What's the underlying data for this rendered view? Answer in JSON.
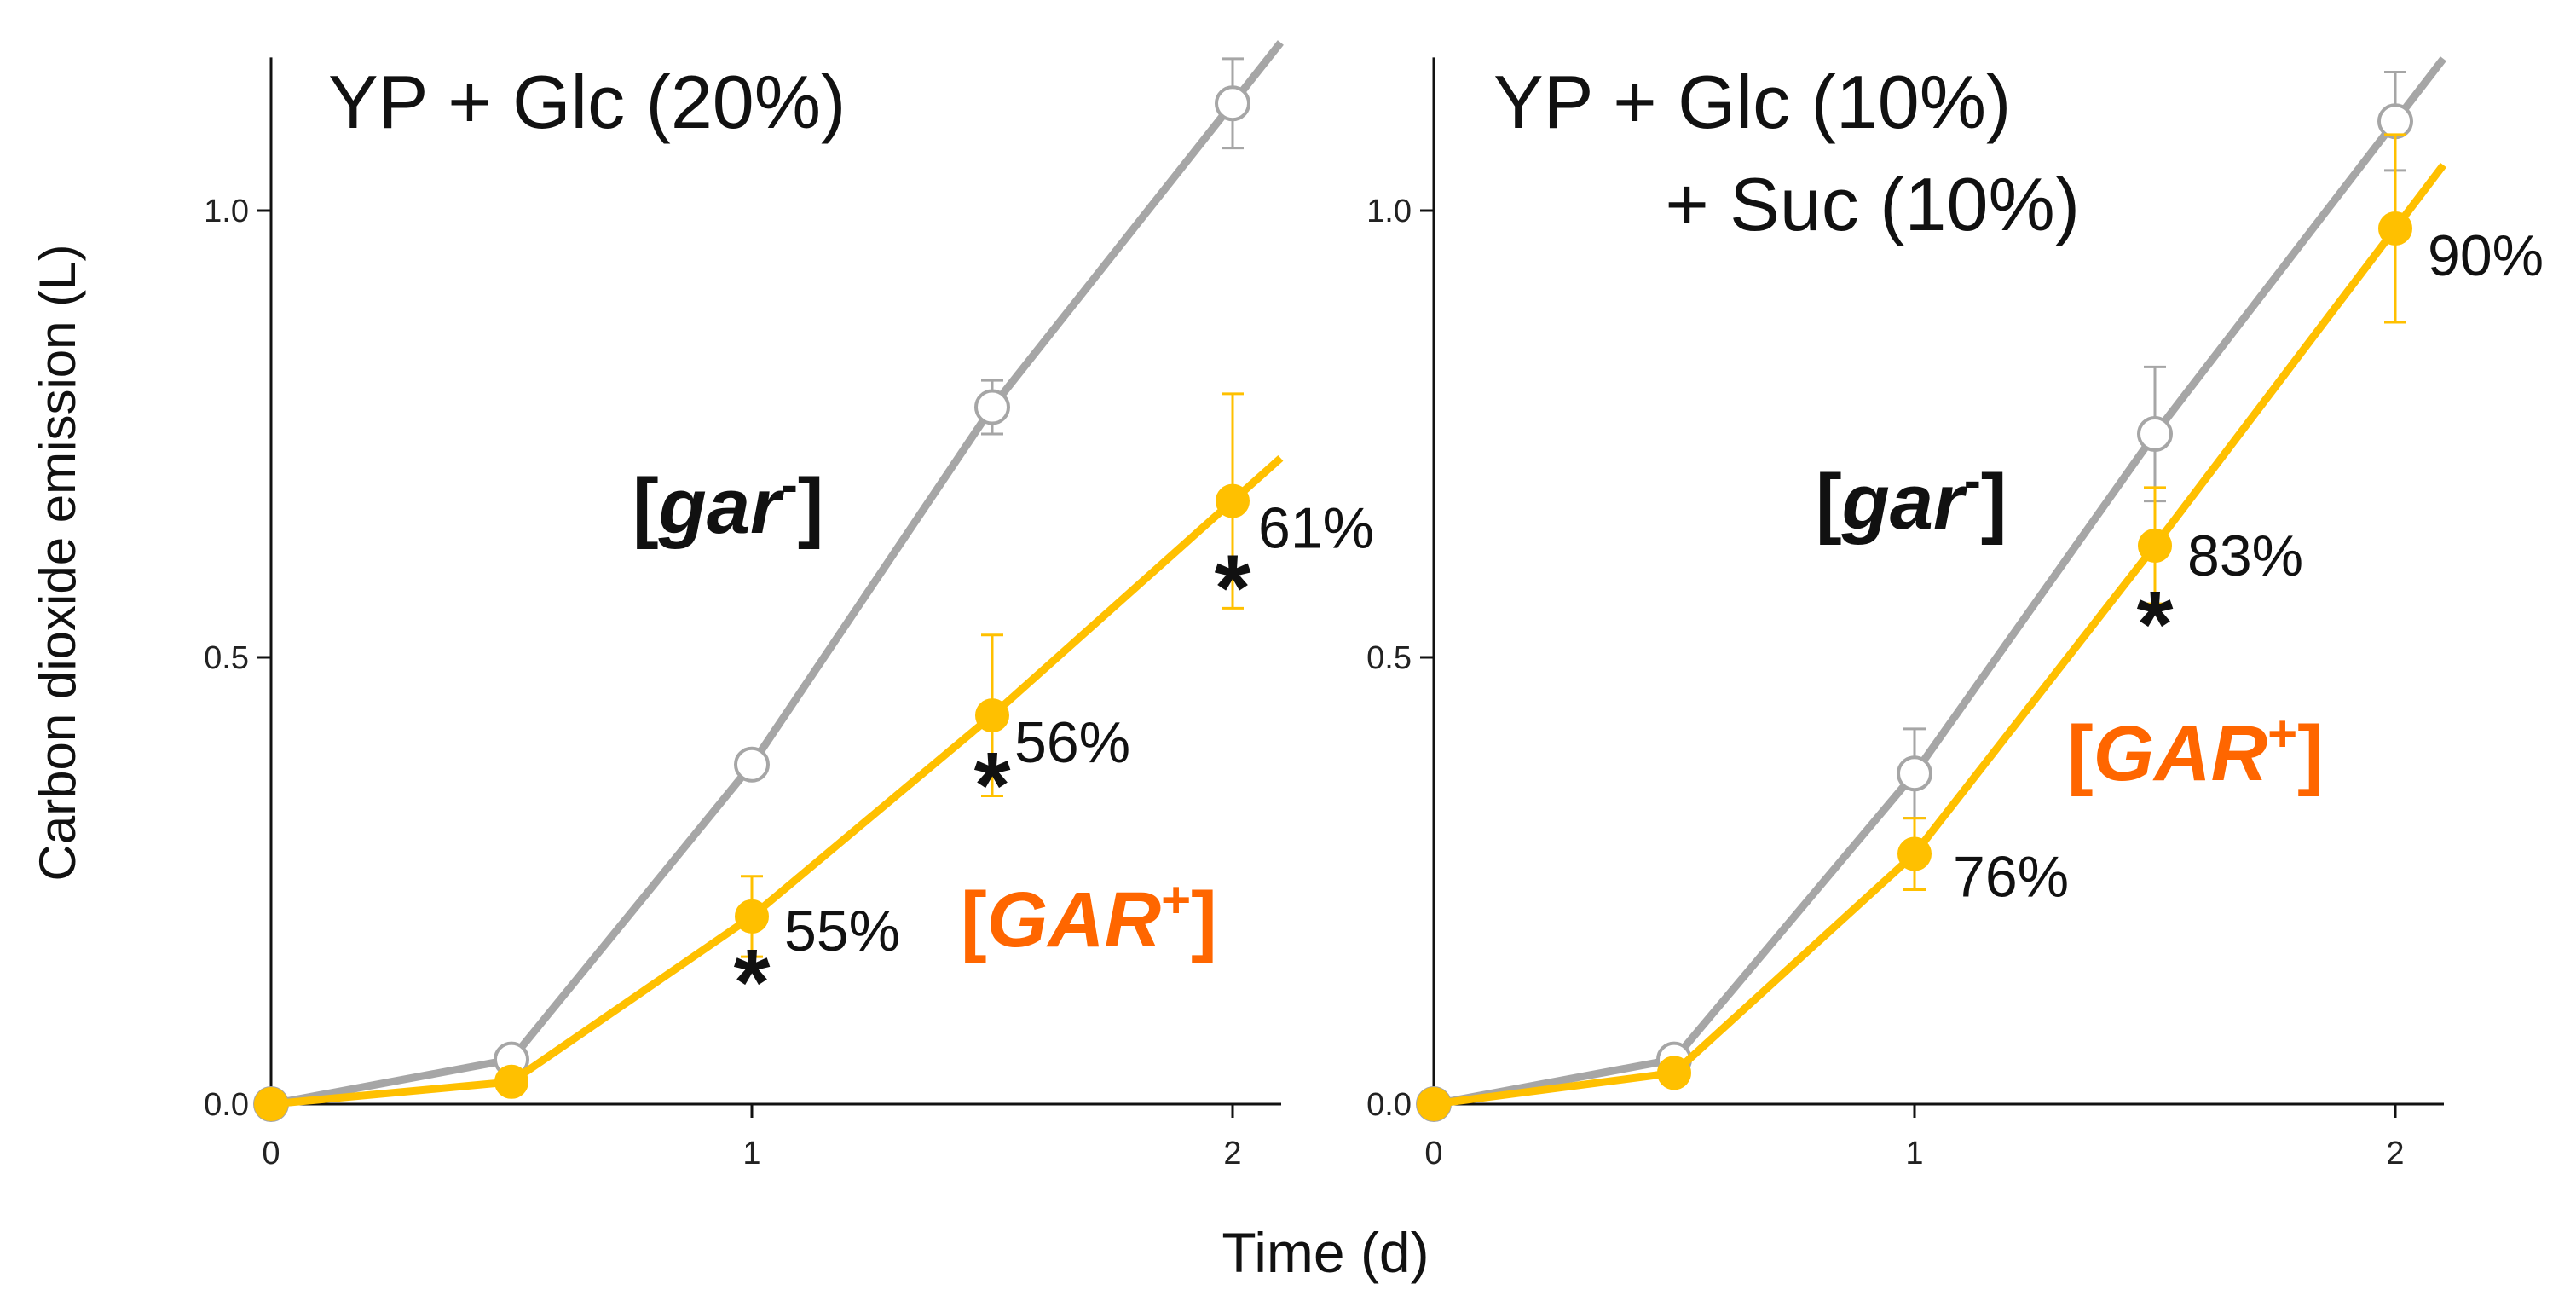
{
  "chart_data": {
    "shared": {
      "xlabel": "Time (d)",
      "ylabel": "Carbon dioxide emission (L)",
      "xlim": [
        0,
        2.1
      ],
      "ylim": [
        0,
        1.2
      ],
      "xticks": [
        0,
        1,
        2
      ],
      "yticks": [
        "0.0",
        "0.5",
        "1.0"
      ],
      "colors": {
        "gar_minus": "#a6a6a6",
        "GAR_plus": "#ffc000",
        "GAR_label": "#ff6600",
        "axis": "#111111"
      }
    },
    "panels": [
      {
        "type": "line",
        "title": "YP + Glc (20%)",
        "title_line2": "",
        "series": [
          {
            "name": "[gar-]",
            "label_main": "gar",
            "label_sup": "-",
            "x": [
              0,
              0.5,
              1,
              1.5,
              2
            ],
            "values": [
              0,
              0.05,
              0.38,
              0.78,
              1.12
            ],
            "errors": [
              0,
              0,
              0,
              0.03,
              0.05
            ]
          },
          {
            "name": "[GAR+]",
            "label_main": "GAR",
            "label_sup": "+",
            "x": [
              0,
              0.5,
              1,
              1.5,
              2
            ],
            "values": [
              0,
              0.025,
              0.21,
              0.435,
              0.675
            ],
            "errors": [
              0,
              0,
              0.045,
              0.09,
              0.12
            ]
          }
        ],
        "annotations": [
          {
            "x": 1,
            "text": "55%",
            "star": true
          },
          {
            "x": 1.5,
            "text": "56%",
            "star": true
          },
          {
            "x": 2,
            "text": "61%",
            "star": true
          }
        ]
      },
      {
        "type": "line",
        "title": "YP + Glc (10%)",
        "title_line2": "+ Suc (10%)",
        "series": [
          {
            "name": "[gar-]",
            "label_main": "gar",
            "label_sup": "-",
            "x": [
              0,
              0.5,
              1,
              1.5,
              2
            ],
            "values": [
              0,
              0.05,
              0.37,
              0.75,
              1.1
            ],
            "errors": [
              0,
              0,
              0.05,
              0.075,
              0.055
            ]
          },
          {
            "name": "[GAR+]",
            "label_main": "GAR",
            "label_sup": "+",
            "x": [
              0,
              0.5,
              1,
              1.5,
              2
            ],
            "values": [
              0,
              0.035,
              0.28,
              0.625,
              0.98
            ],
            "errors": [
              0,
              0,
              0.04,
              0.065,
              0.105
            ]
          }
        ],
        "annotations": [
          {
            "x": 1,
            "text": "76%",
            "star": false
          },
          {
            "x": 1.5,
            "text": "83%",
            "star": true
          },
          {
            "x": 2,
            "text": "90%",
            "star": false
          }
        ]
      }
    ]
  }
}
